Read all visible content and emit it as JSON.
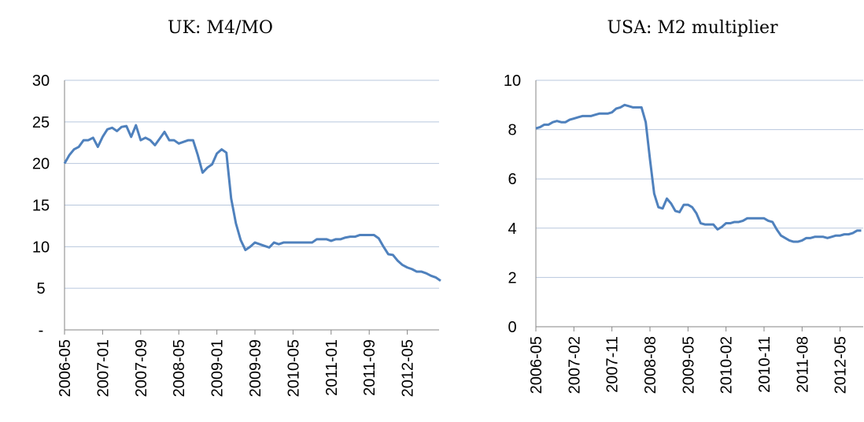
{
  "chart_data": [
    {
      "type": "line",
      "title": "UK: M4/MO",
      "categories": [
        "2006-05",
        null,
        null,
        null,
        null,
        null,
        null,
        null,
        "2007-01",
        null,
        null,
        null,
        null,
        null,
        null,
        null,
        "2007-09",
        null,
        null,
        null,
        null,
        null,
        null,
        null,
        "2008-05",
        null,
        null,
        null,
        null,
        null,
        null,
        null,
        "2009-01",
        null,
        null,
        null,
        null,
        null,
        null,
        null,
        "2009-09",
        null,
        null,
        null,
        null,
        null,
        null,
        null,
        "2010-05",
        null,
        null,
        null,
        null,
        null,
        null,
        null,
        "2011-01",
        null,
        null,
        null,
        null,
        null,
        null,
        null,
        "2011-09",
        null,
        null,
        null,
        null,
        null,
        null,
        null,
        "2012-05",
        null,
        null,
        null,
        null,
        null,
        null,
        null
      ],
      "series": [
        {
          "name": "M4/MO",
          "color": "#4f81bd",
          "values": [
            20,
            21,
            21.7,
            22,
            22.8,
            22.8,
            23.1,
            22,
            23.2,
            24.1,
            24.3,
            23.9,
            24.4,
            24.5,
            23.2,
            24.6,
            22.8,
            23.1,
            22.8,
            22.2,
            23,
            23.8,
            22.8,
            22.8,
            22.4,
            22.6,
            22.8,
            22.8,
            21,
            18.9,
            19.5,
            19.9,
            21.2,
            21.7,
            21.3,
            15.8,
            12.8,
            10.8,
            9.6,
            10,
            10.5,
            10.3,
            10.1,
            9.9,
            10.5,
            10.3,
            10.5,
            10.5,
            10.5,
            10.5,
            10.5,
            10.5,
            10.5,
            10.9,
            10.9,
            10.9,
            10.7,
            10.9,
            10.9,
            11.1,
            11.2,
            11.2,
            11.4,
            11.4,
            11.4,
            11.4,
            11,
            10,
            9.1,
            9,
            8.3,
            7.8,
            7.5,
            7.3,
            7,
            7,
            6.8,
            6.5,
            6.3,
            5.9
          ]
        }
      ],
      "ylim": [
        0,
        30
      ],
      "yticks": [
        {
          "value": 0,
          "label": "-"
        },
        5,
        10,
        15,
        20,
        25,
        30
      ],
      "grid": true
    },
    {
      "type": "line",
      "title": "USA: M2 multiplier",
      "categories": [
        "2006-05",
        null,
        null,
        null,
        null,
        null,
        null,
        null,
        null,
        "2007-02",
        null,
        null,
        null,
        null,
        null,
        null,
        null,
        null,
        "2007-11",
        null,
        null,
        null,
        null,
        null,
        null,
        null,
        null,
        "2008-08",
        null,
        null,
        null,
        null,
        null,
        null,
        null,
        null,
        "2009-05",
        null,
        null,
        null,
        null,
        null,
        null,
        null,
        null,
        "2010-02",
        null,
        null,
        null,
        null,
        null,
        null,
        null,
        null,
        "2010-11",
        null,
        null,
        null,
        null,
        null,
        null,
        null,
        null,
        "2011-08",
        null,
        null,
        null,
        null,
        null,
        null,
        null,
        null,
        "2012-05",
        null,
        null,
        null,
        null,
        null
      ],
      "series": [
        {
          "name": "M2 multiplier",
          "color": "#4f81bd",
          "values": [
            8.05,
            8.1,
            8.2,
            8.2,
            8.3,
            8.35,
            8.3,
            8.3,
            8.4,
            8.45,
            8.5,
            8.55,
            8.55,
            8.55,
            8.6,
            8.65,
            8.65,
            8.65,
            8.7,
            8.85,
            8.9,
            9,
            8.95,
            8.9,
            8.9,
            8.9,
            8.3,
            6.8,
            5.4,
            4.85,
            4.8,
            5.2,
            5,
            4.7,
            4.65,
            4.95,
            4.95,
            4.85,
            4.6,
            4.2,
            4.15,
            4.15,
            4.15,
            3.95,
            4.05,
            4.2,
            4.2,
            4.25,
            4.25,
            4.3,
            4.4,
            4.4,
            4.4,
            4.4,
            4.4,
            4.3,
            4.25,
            3.95,
            3.7,
            3.6,
            3.5,
            3.45,
            3.45,
            3.5,
            3.6,
            3.6,
            3.65,
            3.65,
            3.65,
            3.6,
            3.65,
            3.7,
            3.7,
            3.75,
            3.75,
            3.8,
            3.9,
            3.9
          ]
        }
      ],
      "ylim": [
        0,
        10
      ],
      "yticks": [
        0,
        2,
        4,
        6,
        8,
        10
      ],
      "grid": true
    }
  ]
}
